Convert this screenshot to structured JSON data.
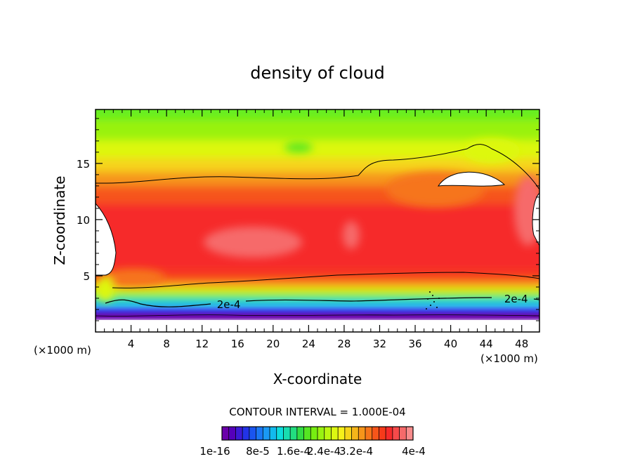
{
  "chart_data": {
    "type": "heatmap",
    "title": "density of cloud",
    "xlabel": "X-coordinate",
    "ylabel": "Z-coordinate",
    "x_unit": "(×1000 m)",
    "y_unit": "(×1000 m)",
    "xlim": [
      0,
      50
    ],
    "ylim": [
      0,
      19.8
    ],
    "x_ticks": [
      4,
      8,
      12,
      16,
      20,
      24,
      28,
      32,
      36,
      40,
      44,
      48
    ],
    "y_ticks": [
      5,
      10,
      15
    ],
    "contour_interval_text": "CONTOUR INTERVAL = 1.000E-04",
    "contour_labels": [
      {
        "text": "2e-4",
        "x": 15.0,
        "y": 2.5
      },
      {
        "text": "2e-4",
        "x": 48.0,
        "y": 3.0
      }
    ],
    "colorbar": {
      "min": 1e-16,
      "max": 0.0004,
      "tick_labels": [
        "1e-16",
        "8e-5",
        "1.6e-4",
        "2.4e-4",
        "3.2e-4",
        "4e-4"
      ],
      "colors": [
        "#6a00aa",
        "#5500bb",
        "#3c1ad6",
        "#2233e8",
        "#1a55f0",
        "#1a77f5",
        "#1a99f5",
        "#12bbee",
        "#0edddd",
        "#18ddb0",
        "#22dd80",
        "#33dd44",
        "#55e622",
        "#77ee11",
        "#99f211",
        "#bbf611",
        "#ddf811",
        "#f6f01a",
        "#f6d41a",
        "#f6b51a",
        "#f6951a",
        "#f6751a",
        "#f6551a",
        "#f63a1a",
        "#f62a2a",
        "#f64a4a",
        "#f66a6a",
        "#f88c8c"
      ]
    }
  }
}
